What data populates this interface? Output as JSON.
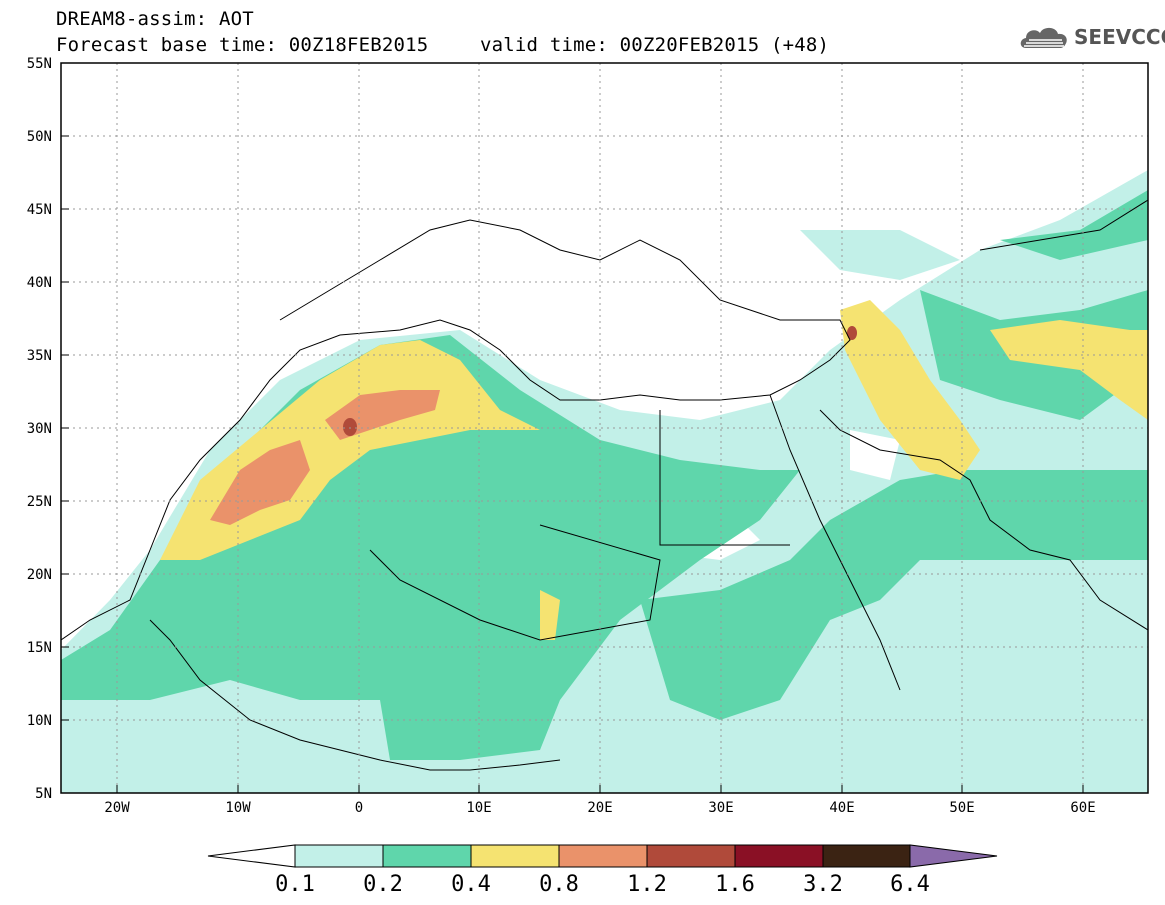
{
  "header": {
    "title_line1": "DREAM8-assim: AOT",
    "base_time": "Forecast base time: 00Z18FEB2015",
    "valid_time": "valid time: 00Z20FEB2015 (+48)",
    "logo_text": "SEEVCCC",
    "logo_icon": "cloud-icon"
  },
  "map": {
    "lat_labels": [
      "55N",
      "50N",
      "45N",
      "40N",
      "35N",
      "30N",
      "25N",
      "20N",
      "15N",
      "10N",
      "5N"
    ],
    "lon_labels": [
      "20W",
      "10W",
      "0",
      "10E",
      "20E",
      "30E",
      "40E",
      "50E",
      "60E"
    ],
    "lat_range": [
      5,
      55
    ],
    "lon_range": [
      -25,
      65
    ]
  },
  "colorbar": {
    "levels": [
      "0.1",
      "0.2",
      "0.4",
      "0.8",
      "1.2",
      "1.6",
      "3.2",
      "6.4"
    ],
    "colors": [
      "#ffffff",
      "#c2f0e8",
      "#5fd6ab",
      "#f5e371",
      "#ea926a",
      "#b04a3a",
      "#8a1025",
      "#3b2313",
      "#8a6aaa"
    ]
  }
}
